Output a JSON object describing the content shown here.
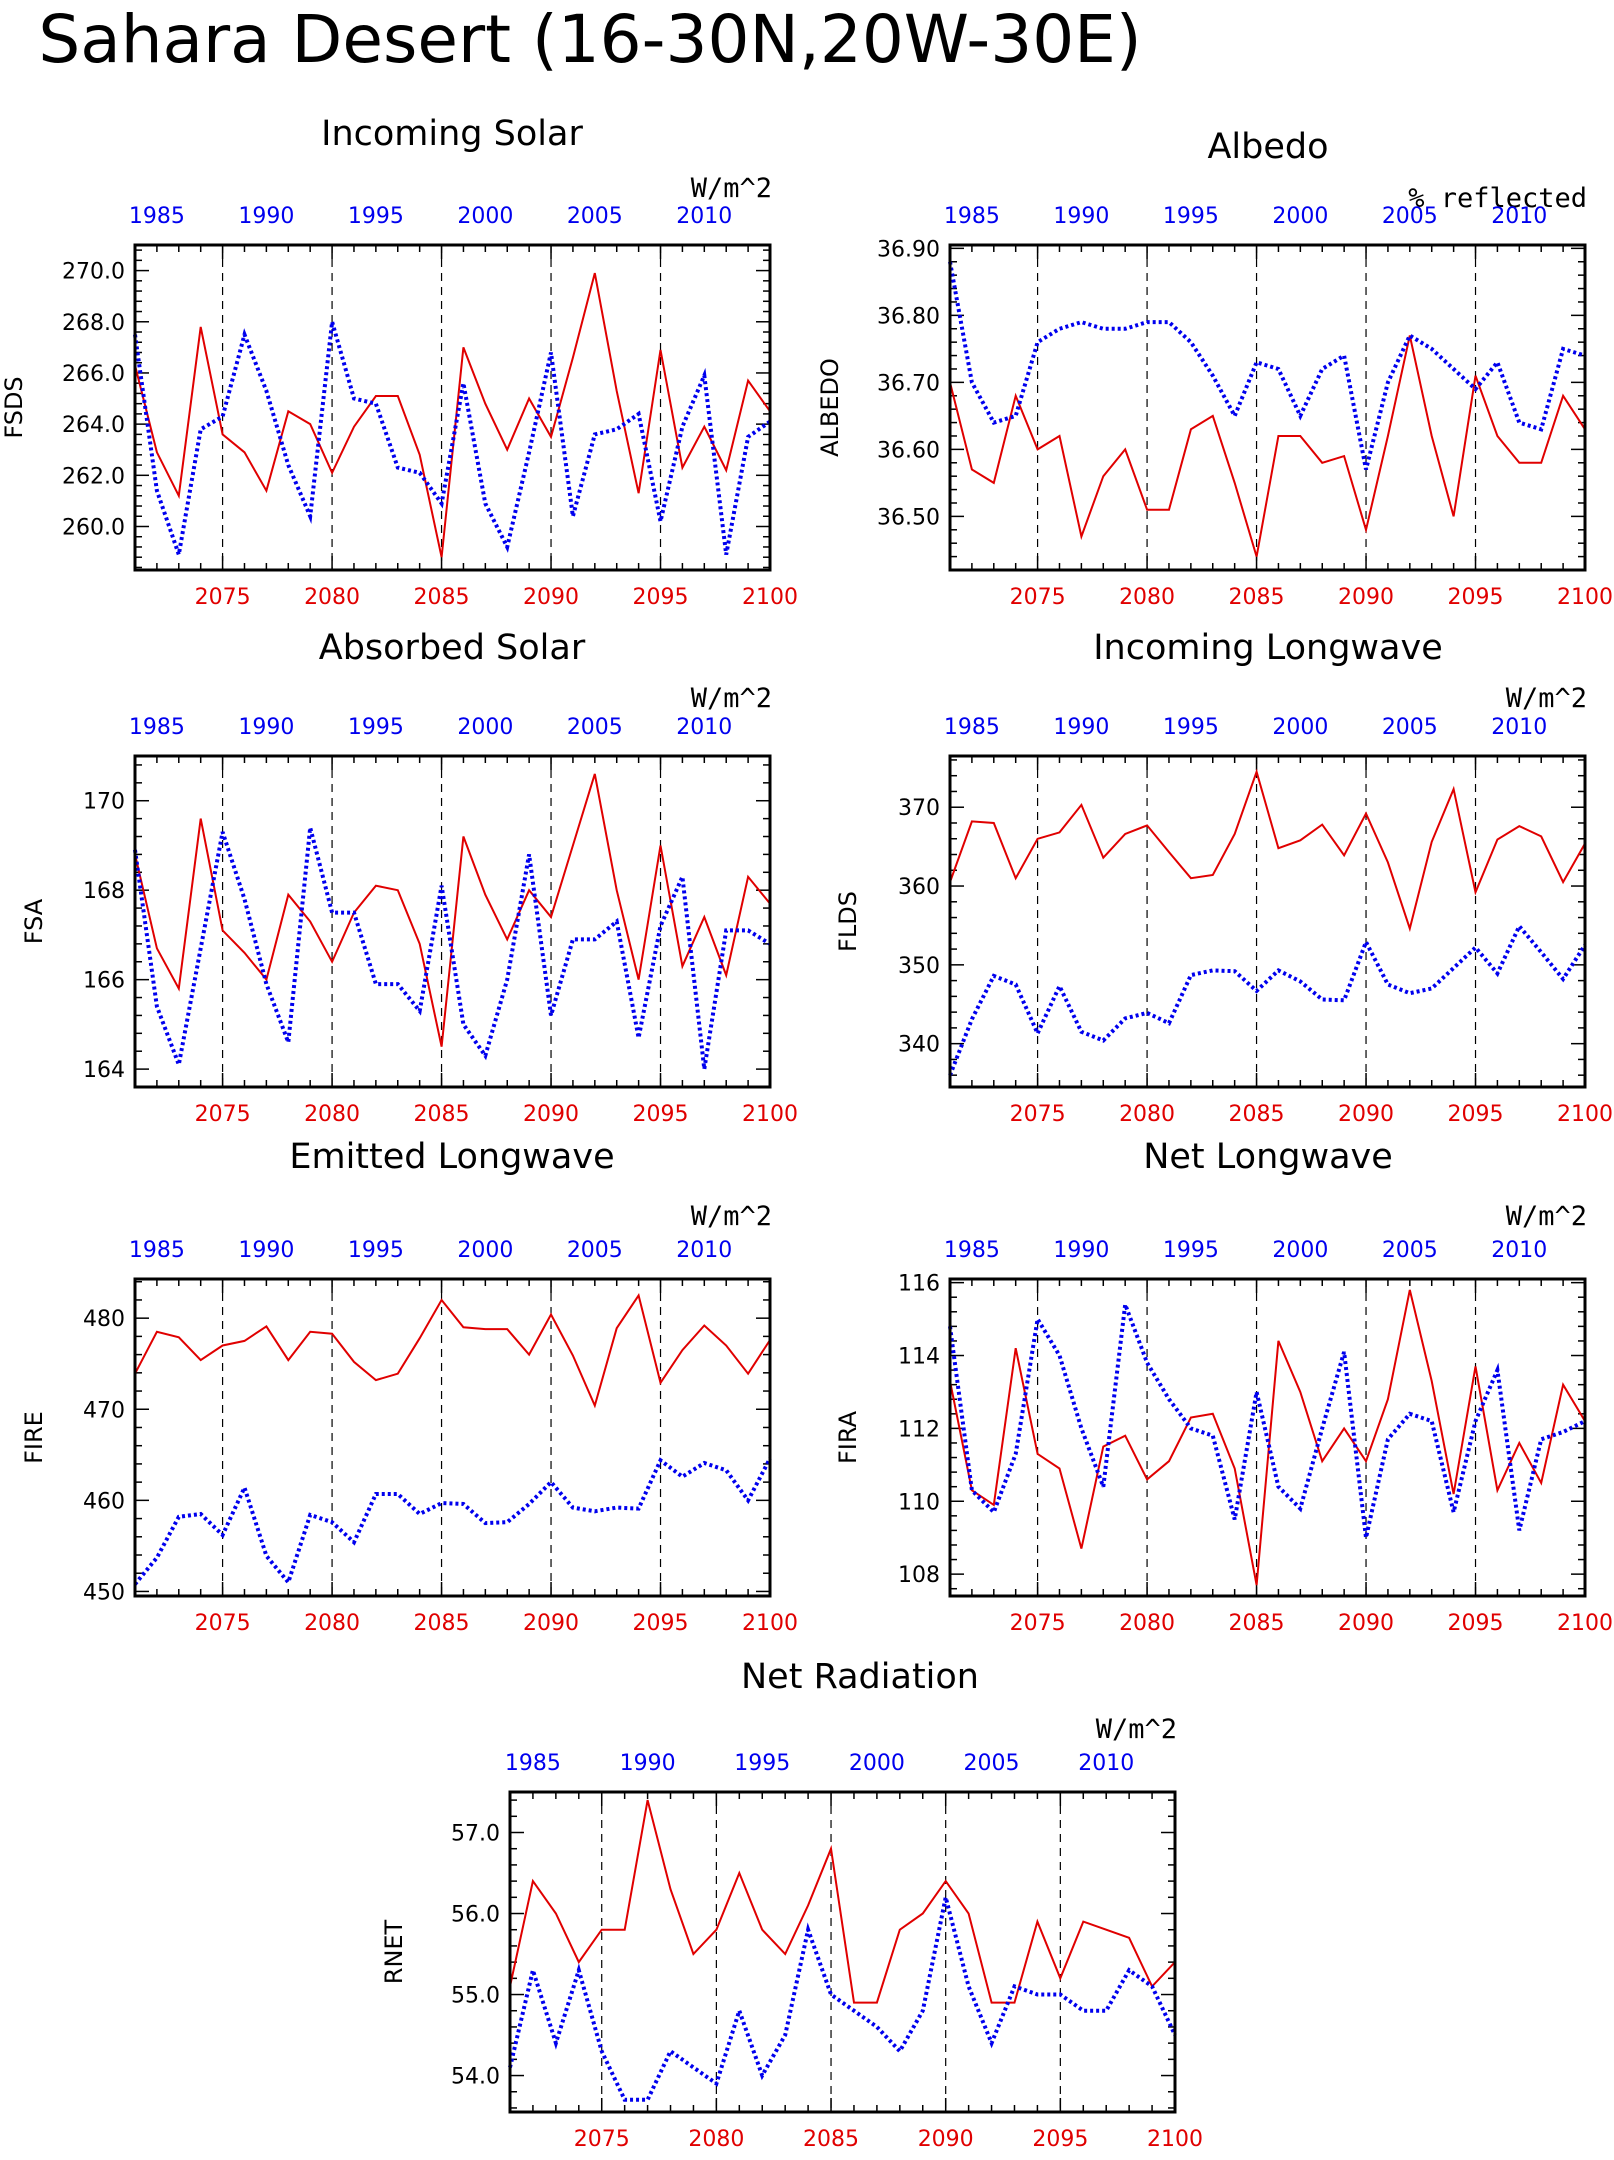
{
  "title": "Sahara Desert (16-30N,20W-30E)",
  "colors": {
    "future": "#e00000",
    "historical": "#0000ee",
    "axis": "#000000"
  },
  "chart_data": [
    {
      "id": "fsds",
      "type": "line",
      "title": "Incoming Solar",
      "units": "W/m^2",
      "ylabel": "FSDS",
      "ylim": [
        258.3,
        271.0
      ],
      "yticks": [
        "260.0",
        "262.0",
        "264.0",
        "266.0",
        "268.0",
        "270.0"
      ],
      "series": [
        {
          "x": [
            2071,
            2072,
            2073,
            2074,
            2075,
            2076,
            2077,
            2078,
            2079,
            2080,
            2081,
            2082,
            2083,
            2084,
            2085,
            2086,
            2087,
            2088,
            2089,
            2090,
            2091,
            2092,
            2093,
            2094,
            2095,
            2096,
            2097,
            2098,
            2099,
            2100
          ],
          "values": [
            266.3,
            262.9,
            261.2,
            267.8,
            263.6,
            262.9,
            261.4,
            264.5,
            264.0,
            262.1,
            263.9,
            265.1,
            265.1,
            262.8,
            258.8,
            267.0,
            264.8,
            263.0,
            265.0,
            263.5,
            266.6,
            269.9,
            265.3,
            261.3,
            266.9,
            262.3,
            263.9,
            262.2,
            265.7,
            264.5
          ]
        },
        {
          "x": [
            1984,
            1985,
            1986,
            1987,
            1988,
            1989,
            1990,
            1991,
            1992,
            1993,
            1994,
            1995,
            1996,
            1997,
            1998,
            1999,
            2000,
            2001,
            2002,
            2003,
            2004,
            2005,
            2006,
            2007,
            2008,
            2009,
            2010,
            2011,
            2012,
            2013
          ],
          "values": [
            267.5,
            261.4,
            258.9,
            263.8,
            264.3,
            267.5,
            265.3,
            262.4,
            260.4,
            268.0,
            265.0,
            264.8,
            262.3,
            262.1,
            260.9,
            265.6,
            260.9,
            259.2,
            262.9,
            266.8,
            260.4,
            263.6,
            263.8,
            264.4,
            260.2,
            263.9,
            265.9,
            258.9,
            263.5,
            264.1
          ]
        }
      ]
    },
    {
      "id": "albedo",
      "type": "line",
      "title": "Albedo",
      "units": "% reflected",
      "ylabel": "ALBEDO",
      "ylim": [
        36.42,
        36.905
      ],
      "yticks": [
        "36.50",
        "36.60",
        "36.70",
        "36.80",
        "36.90"
      ],
      "series": [
        {
          "x": [
            2071,
            2072,
            2073,
            2074,
            2075,
            2076,
            2077,
            2078,
            2079,
            2080,
            2081,
            2082,
            2083,
            2084,
            2085,
            2086,
            2087,
            2088,
            2089,
            2090,
            2091,
            2092,
            2093,
            2094,
            2095,
            2096,
            2097,
            2098,
            2099,
            2100
          ],
          "values": [
            36.7,
            36.57,
            36.55,
            36.68,
            36.6,
            36.62,
            36.47,
            36.56,
            36.6,
            36.51,
            36.51,
            36.63,
            36.65,
            36.55,
            36.44,
            36.62,
            36.62,
            36.58,
            36.59,
            36.48,
            36.62,
            36.77,
            36.62,
            36.5,
            36.71,
            36.62,
            36.58,
            36.58,
            36.68,
            36.63
          ]
        },
        {
          "x": [
            1984,
            1985,
            1986,
            1987,
            1988,
            1989,
            1990,
            1991,
            1992,
            1993,
            1994,
            1995,
            1996,
            1997,
            1998,
            1999,
            2000,
            2001,
            2002,
            2003,
            2004,
            2005,
            2006,
            2007,
            2008,
            2009,
            2010,
            2011,
            2012,
            2013
          ],
          "values": [
            36.88,
            36.7,
            36.64,
            36.65,
            36.76,
            36.78,
            36.79,
            36.78,
            36.78,
            36.79,
            36.79,
            36.76,
            36.71,
            36.65,
            36.73,
            36.72,
            36.65,
            36.72,
            36.74,
            36.57,
            36.7,
            36.77,
            36.75,
            36.72,
            36.69,
            36.73,
            36.64,
            36.63,
            36.75,
            36.74
          ]
        }
      ]
    },
    {
      "id": "fsa",
      "type": "line",
      "title": "Absorbed Solar",
      "units": "W/m^2",
      "ylabel": "FSA",
      "ylim": [
        163.6,
        171.0
      ],
      "yticks": [
        "164",
        "166",
        "168",
        "170"
      ],
      "series": [
        {
          "x": [
            2071,
            2072,
            2073,
            2074,
            2075,
            2076,
            2077,
            2078,
            2079,
            2080,
            2081,
            2082,
            2083,
            2084,
            2085,
            2086,
            2087,
            2088,
            2089,
            2090,
            2091,
            2092,
            2093,
            2094,
            2095,
            2096,
            2097,
            2098,
            2099,
            2100
          ],
          "values": [
            168.8,
            166.7,
            165.8,
            169.6,
            167.1,
            166.6,
            166.0,
            167.9,
            167.3,
            166.4,
            167.5,
            168.1,
            168.0,
            166.8,
            164.5,
            169.2,
            167.9,
            166.9,
            168.0,
            167.4,
            169.0,
            170.6,
            168.0,
            166.0,
            169.0,
            166.3,
            167.4,
            166.1,
            168.3,
            167.7
          ]
        },
        {
          "x": [
            1984,
            1985,
            1986,
            1987,
            1988,
            1989,
            1990,
            1991,
            1992,
            1993,
            1994,
            1995,
            1996,
            1997,
            1998,
            1999,
            2000,
            2001,
            2002,
            2003,
            2004,
            2005,
            2006,
            2007,
            2008,
            2009,
            2010,
            2011,
            2012,
            2013
          ],
          "values": [
            168.9,
            165.4,
            164.1,
            166.7,
            169.3,
            167.8,
            165.9,
            164.6,
            169.4,
            167.5,
            167.5,
            165.9,
            165.9,
            165.3,
            168.1,
            165.0,
            164.3,
            166.0,
            168.8,
            165.2,
            166.9,
            166.9,
            167.3,
            164.7,
            167.2,
            168.3,
            164.0,
            167.1,
            167.1,
            166.8
          ]
        }
      ]
    },
    {
      "id": "flds",
      "type": "line",
      "title": "Incoming Longwave",
      "units": "W/m^2",
      "ylabel": "FLDS",
      "ylim": [
        334.5,
        376.5
      ],
      "yticks": [
        "340",
        "350",
        "360",
        "370"
      ],
      "series": [
        {
          "x": [
            2071,
            2072,
            2073,
            2074,
            2075,
            2076,
            2077,
            2078,
            2079,
            2080,
            2081,
            2082,
            2083,
            2084,
            2085,
            2086,
            2087,
            2088,
            2089,
            2090,
            2091,
            2092,
            2093,
            2094,
            2095,
            2096,
            2097,
            2098,
            2099,
            2100
          ],
          "values": [
            360.5,
            368.2,
            368.0,
            361.0,
            366.0,
            366.8,
            370.3,
            363.6,
            366.6,
            367.7,
            364.3,
            361.0,
            361.4,
            366.6,
            374.5,
            364.8,
            365.8,
            367.8,
            363.9,
            369.2,
            363.0,
            354.6,
            365.6,
            372.3,
            359.2,
            365.9,
            367.6,
            366.3,
            360.5,
            365.4
          ]
        },
        {
          "x": [
            1984,
            1985,
            1986,
            1987,
            1988,
            1989,
            1990,
            1991,
            1992,
            1993,
            1994,
            1995,
            1996,
            1997,
            1998,
            1999,
            2000,
            2001,
            2002,
            2003,
            2004,
            2005,
            2006,
            2007,
            2008,
            2009,
            2010,
            2011,
            2012,
            2013
          ],
          "values": [
            336.0,
            343.1,
            348.6,
            347.5,
            341.3,
            347.3,
            341.5,
            340.4,
            343.2,
            343.9,
            342.6,
            348.7,
            349.3,
            349.2,
            346.7,
            349.3,
            347.9,
            345.6,
            345.5,
            352.9,
            347.5,
            346.4,
            347.0,
            349.6,
            352.2,
            348.9,
            354.9,
            351.6,
            348.2,
            352.5
          ]
        }
      ]
    },
    {
      "id": "fire",
      "type": "line",
      "title": "Emitted Longwave",
      "units": "W/m^2",
      "ylabel": "FIRE",
      "ylim": [
        449.5,
        484.3
      ],
      "yticks": [
        "450",
        "460",
        "470",
        "480"
      ],
      "series": [
        {
          "x": [
            2071,
            2072,
            2073,
            2074,
            2075,
            2076,
            2077,
            2078,
            2079,
            2080,
            2081,
            2082,
            2083,
            2084,
            2085,
            2086,
            2087,
            2088,
            2089,
            2090,
            2091,
            2092,
            2093,
            2094,
            2095,
            2096,
            2097,
            2098,
            2099,
            2100
          ],
          "values": [
            473.9,
            478.5,
            477.9,
            475.4,
            477.0,
            477.5,
            479.1,
            475.4,
            478.5,
            478.3,
            475.2,
            473.2,
            473.9,
            477.8,
            482.0,
            479.0,
            478.8,
            478.8,
            476.0,
            480.4,
            475.9,
            470.4,
            478.9,
            482.5,
            472.9,
            476.5,
            479.2,
            477.0,
            473.9,
            477.6
          ]
        },
        {
          "x": [
            1984,
            1985,
            1986,
            1987,
            1988,
            1989,
            1990,
            1991,
            1992,
            1993,
            1994,
            1995,
            1996,
            1997,
            1998,
            1999,
            2000,
            2001,
            2002,
            2003,
            2004,
            2005,
            2006,
            2007,
            2008,
            2009,
            2010,
            2011,
            2012,
            2013
          ],
          "values": [
            450.8,
            453.7,
            458.2,
            458.5,
            456.2,
            461.4,
            453.9,
            451.0,
            458.4,
            457.6,
            455.4,
            460.7,
            460.7,
            458.5,
            459.7,
            459.6,
            457.5,
            457.6,
            459.6,
            462.0,
            459.2,
            458.8,
            459.2,
            459.1,
            464.4,
            462.6,
            464.1,
            463.3,
            460.0,
            464.6
          ]
        }
      ]
    },
    {
      "id": "fira",
      "type": "line",
      "title": "Net Longwave",
      "units": "W/m^2",
      "ylabel": "FIRA",
      "ylim": [
        107.4,
        116.1
      ],
      "yticks": [
        "108",
        "110",
        "112",
        "114",
        "116"
      ],
      "series": [
        {
          "x": [
            2071,
            2072,
            2073,
            2074,
            2075,
            2076,
            2077,
            2078,
            2079,
            2080,
            2081,
            2082,
            2083,
            2084,
            2085,
            2086,
            2087,
            2088,
            2089,
            2090,
            2091,
            2092,
            2093,
            2094,
            2095,
            2096,
            2097,
            2098,
            2099,
            2100
          ],
          "values": [
            113.3,
            110.3,
            109.9,
            114.2,
            111.3,
            110.9,
            108.7,
            111.5,
            111.8,
            110.6,
            111.1,
            112.3,
            112.4,
            110.9,
            107.7,
            114.4,
            113.0,
            111.1,
            112.0,
            111.1,
            112.8,
            115.8,
            113.3,
            110.2,
            113.7,
            110.3,
            111.6,
            110.5,
            113.2,
            112.2
          ]
        },
        {
          "x": [
            1984,
            1985,
            1986,
            1987,
            1988,
            1989,
            1990,
            1991,
            1992,
            1993,
            1994,
            1995,
            1996,
            1997,
            1998,
            1999,
            2000,
            2001,
            2002,
            2003,
            2004,
            2005,
            2006,
            2007,
            2008,
            2009,
            2010,
            2011,
            2012,
            2013
          ],
          "values": [
            114.8,
            110.3,
            109.7,
            111.3,
            115.0,
            114.0,
            112.0,
            110.4,
            115.4,
            113.8,
            112.8,
            112.0,
            111.8,
            109.5,
            113.0,
            110.4,
            109.8,
            112.0,
            114.1,
            109.0,
            111.7,
            112.4,
            112.2,
            109.7,
            112.2,
            113.6,
            109.2,
            111.7,
            111.9,
            112.2
          ]
        }
      ]
    },
    {
      "id": "rnet",
      "type": "line",
      "title": "Net Radiation",
      "units": "W/m^2",
      "ylabel": "RNET",
      "ylim": [
        53.55,
        57.5
      ],
      "yticks": [
        "54.0",
        "55.0",
        "56.0",
        "57.0"
      ],
      "series": [
        {
          "x": [
            2071,
            2072,
            2073,
            2074,
            2075,
            2076,
            2077,
            2078,
            2079,
            2080,
            2081,
            2082,
            2083,
            2084,
            2085,
            2086,
            2087,
            2088,
            2089,
            2090,
            2091,
            2092,
            2093,
            2094,
            2095,
            2096,
            2097,
            2098,
            2099,
            2100
          ],
          "values": [
            55.1,
            56.4,
            56.0,
            55.4,
            55.8,
            55.8,
            57.4,
            56.3,
            55.5,
            55.8,
            56.5,
            55.8,
            55.5,
            56.1,
            56.8,
            54.9,
            54.9,
            55.8,
            56.0,
            56.4,
            56.0,
            54.9,
            54.9,
            55.9,
            55.2,
            55.9,
            55.8,
            55.7,
            55.1,
            55.4
          ]
        },
        {
          "x": [
            1984,
            1985,
            1986,
            1987,
            1988,
            1989,
            1990,
            1991,
            1992,
            1993,
            1994,
            1995,
            1996,
            1997,
            1998,
            1999,
            2000,
            2001,
            2002,
            2003,
            2004,
            2005,
            2006,
            2007,
            2008,
            2009,
            2010,
            2011,
            2012,
            2013
          ],
          "values": [
            54.1,
            55.3,
            54.4,
            55.3,
            54.3,
            53.7,
            53.7,
            54.3,
            54.1,
            53.9,
            54.8,
            54.0,
            54.5,
            55.8,
            55.0,
            54.8,
            54.6,
            54.3,
            54.8,
            56.2,
            55.1,
            54.4,
            55.1,
            55.0,
            55.0,
            54.8,
            54.8,
            55.3,
            55.1,
            54.5
          ]
        }
      ]
    }
  ]
}
